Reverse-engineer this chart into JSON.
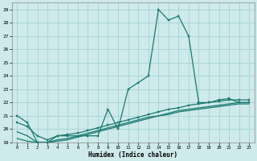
{
  "xlabel": "Humidex (Indice chaleur)",
  "xlim": [
    -0.5,
    23.5
  ],
  "ylim": [
    19,
    29.5
  ],
  "yticks": [
    19,
    20,
    21,
    22,
    23,
    24,
    25,
    26,
    27,
    28,
    29
  ],
  "xticks": [
    0,
    1,
    2,
    3,
    4,
    5,
    6,
    7,
    8,
    9,
    10,
    11,
    12,
    13,
    14,
    15,
    16,
    17,
    18,
    19,
    20,
    21,
    22,
    23
  ],
  "background_color": "#ceeaea",
  "grid_color": "#9ecece",
  "line_color": "#1a7a6e",
  "line1_x": [
    0,
    1,
    2,
    3,
    4,
    5,
    6,
    7,
    8,
    9,
    10,
    11,
    12,
    13,
    14,
    15,
    16,
    17,
    18,
    19,
    20,
    21,
    22,
    23
  ],
  "line1_y": [
    21.0,
    20.5,
    19.0,
    19.0,
    19.5,
    19.5,
    19.5,
    19.5,
    19.5,
    21.5,
    20.0,
    23.0,
    23.5,
    24.0,
    29.0,
    28.2,
    28.5,
    27.0,
    22.0,
    22.0,
    22.2,
    22.3,
    22.0,
    22.0
  ],
  "line2_x": [
    0,
    1,
    2,
    3,
    4,
    5,
    6,
    7,
    8,
    9,
    10,
    11,
    12,
    13,
    14,
    15,
    16,
    17,
    18,
    19,
    20,
    21,
    22,
    23
  ],
  "line2_y": [
    20.5,
    20.2,
    19.5,
    19.2,
    19.5,
    19.6,
    19.7,
    19.9,
    20.1,
    20.3,
    20.5,
    20.7,
    20.9,
    21.1,
    21.3,
    21.5,
    21.6,
    21.8,
    21.9,
    22.0,
    22.1,
    22.2,
    22.2,
    22.2
  ],
  "line3_x": [
    0,
    1,
    2,
    3,
    4,
    5,
    6,
    7,
    8,
    9,
    10,
    11,
    12,
    13,
    14,
    15,
    16,
    17,
    18,
    19,
    20,
    21,
    22,
    23
  ],
  "line3_y": [
    19.8,
    19.5,
    19.0,
    19.0,
    19.2,
    19.3,
    19.5,
    19.7,
    19.9,
    20.1,
    20.3,
    20.5,
    20.7,
    20.9,
    21.0,
    21.2,
    21.4,
    21.5,
    21.6,
    21.7,
    21.8,
    21.9,
    22.0,
    22.0
  ],
  "line4_x": [
    0,
    1,
    2,
    3,
    4,
    5,
    6,
    7,
    8,
    9,
    10,
    11,
    12,
    13,
    14,
    15,
    16,
    17,
    18,
    19,
    20,
    21,
    22,
    23
  ],
  "line4_y": [
    19.3,
    19.1,
    19.0,
    19.0,
    19.1,
    19.2,
    19.4,
    19.6,
    19.8,
    20.0,
    20.2,
    20.4,
    20.6,
    20.8,
    21.0,
    21.1,
    21.3,
    21.4,
    21.5,
    21.6,
    21.7,
    21.8,
    21.9,
    21.9
  ]
}
